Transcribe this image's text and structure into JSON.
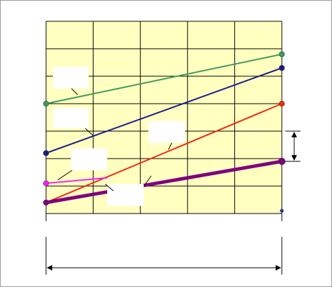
{
  "chart_data": {
    "type": "line",
    "xlim": [
      0,
      1
    ],
    "ylim": [
      0,
      7
    ],
    "xticks": [
      0,
      0.2,
      0.4,
      0.6,
      0.8,
      1
    ],
    "yticks": [
      0,
      1,
      2,
      3,
      4,
      5,
      6,
      7
    ],
    "grid": true,
    "series": [
      {
        "color": "#3a9a5c",
        "x": [
          0,
          1
        ],
        "values": [
          4.0,
          5.8
        ]
      },
      {
        "color": "#1a1a8a",
        "x": [
          0,
          1
        ],
        "values": [
          2.2,
          5.3
        ]
      },
      {
        "color": "#ee2a10",
        "x": [
          0,
          1
        ],
        "values": [
          0.4,
          4.0
        ]
      },
      {
        "color": "#ee22ee",
        "x": [
          0,
          0.26
        ],
        "values": [
          1.1,
          1.3
        ]
      },
      {
        "color": "#800080",
        "x": [
          0,
          1
        ],
        "values": [
          0.4,
          1.9
        ]
      },
      {
        "color": "#2233cc",
        "x": [
          1
        ],
        "values": [
          0.1
        ]
      }
    ]
  }
}
